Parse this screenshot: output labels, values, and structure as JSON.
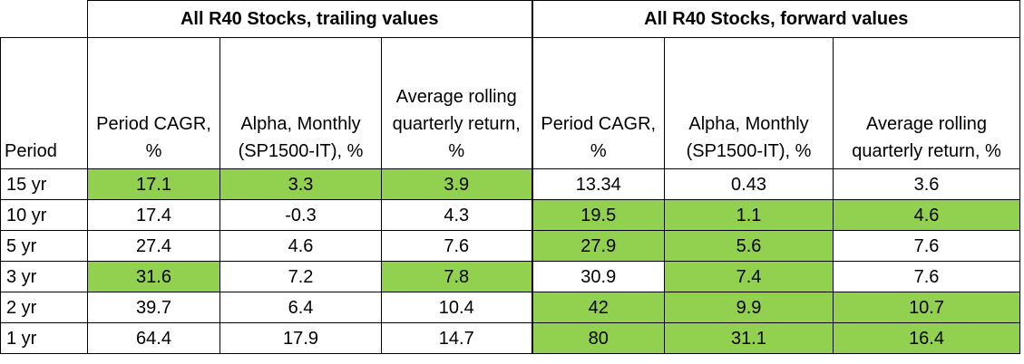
{
  "groups": {
    "trailing": "All R40 Stocks, trailing values",
    "forward": "All R40 Stocks, forward values"
  },
  "headers": {
    "period": "Period",
    "t_cagr": "Period CAGR, %",
    "t_alpha": "Alpha, Monthly (SP1500-IT), %",
    "t_rolling": "Average rolling quarterly return, %",
    "f_cagr": "Period CAGR, %",
    "f_alpha": "Alpha, Monthly (SP1500-IT), %",
    "f_rolling": "Average rolling quarterly return, %"
  },
  "highlight_color": "#92d050",
  "rows": [
    {
      "period": "15 yr",
      "t_cagr": "17.1",
      "t_alpha": "3.3",
      "t_rolling": "3.9",
      "f_cagr": "13.34",
      "f_alpha": "0.43",
      "f_rolling": "3.6"
    },
    {
      "period": "10 yr",
      "t_cagr": "17.4",
      "t_alpha": "-0.3",
      "t_rolling": "4.3",
      "f_cagr": "19.5",
      "f_alpha": "1.1",
      "f_rolling": "4.6"
    },
    {
      "period": "5 yr",
      "t_cagr": "27.4",
      "t_alpha": "4.6",
      "t_rolling": "7.6",
      "f_cagr": "27.9",
      "f_alpha": "5.6",
      "f_rolling": "7.6"
    },
    {
      "period": "3 yr",
      "t_cagr": "31.6",
      "t_alpha": "7.2",
      "t_rolling": "7.8",
      "f_cagr": "30.9",
      "f_alpha": "7.4",
      "f_rolling": "7.6"
    },
    {
      "period": "2 yr",
      "t_cagr": "39.7",
      "t_alpha": "6.4",
      "t_rolling": "10.4",
      "f_cagr": "42",
      "f_alpha": "9.9",
      "f_rolling": "10.7"
    },
    {
      "period": "1 yr",
      "t_cagr": "64.4",
      "t_alpha": "17.9",
      "t_rolling": "14.7",
      "f_cagr": "80",
      "f_alpha": "31.1",
      "f_rolling": "16.4"
    }
  ]
}
